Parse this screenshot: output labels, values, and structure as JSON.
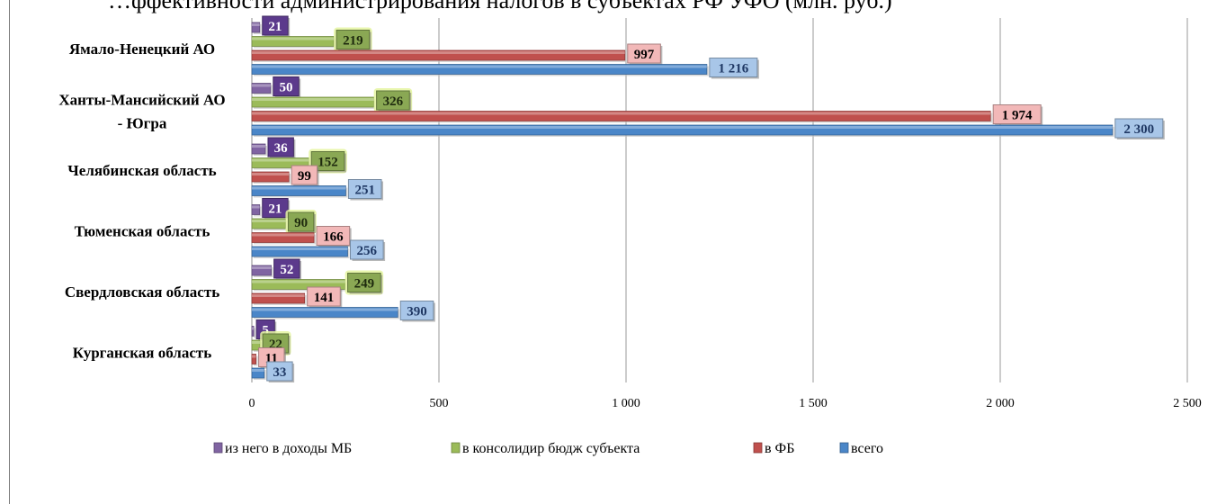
{
  "title": "…ффективности администрирования налогов в субъектах РФ УФО (млн. руб.)",
  "chart_data": {
    "type": "bar",
    "orientation": "horizontal",
    "categories": [
      "Курганская  область",
      "Свердловская область",
      "Тюменская область",
      "Челябинская область",
      "Ханты-Мансийский АО - Югра",
      "Ямало-Ненецкий  АО"
    ],
    "series": [
      {
        "name": "всего",
        "color": "#4a86c8",
        "values": [
          33,
          390,
          256,
          251,
          2300,
          1216
        ],
        "labels": [
          "33",
          "390",
          "256",
          "251",
          "2 300",
          "1 216"
        ]
      },
      {
        "name": "в ФБ",
        "color": "#c0504d",
        "values": [
          11,
          141,
          166,
          99,
          1974,
          997
        ],
        "labels": [
          "11",
          "141",
          "166",
          "99",
          "1 974",
          "997"
        ]
      },
      {
        "name": "в консолидир бюдж субъекта",
        "color": "#9bbb59",
        "values": [
          22,
          249,
          90,
          152,
          326,
          219
        ],
        "labels": [
          "22",
          "249",
          "90",
          "152",
          "326",
          "219"
        ]
      },
      {
        "name": "из него в доходы МБ",
        "color": "#8064a2",
        "values": [
          5,
          52,
          21,
          36,
          50,
          21
        ],
        "labels": [
          "5",
          "52",
          "21",
          "36",
          "50",
          "21"
        ]
      }
    ],
    "xlim": [
      0,
      2500
    ],
    "ticks": [
      0,
      500,
      1000,
      1500,
      2000,
      2500
    ],
    "tick_labels": [
      "0",
      "500",
      "1 000",
      "1 500",
      "2 000",
      "2 500"
    ],
    "grid": true,
    "legend_position": "bottom"
  },
  "legend": {
    "items": [
      {
        "label": "из него в доходы МБ",
        "color": "#8064a2"
      },
      {
        "label": "в консолидир бюдж субъекта",
        "color": "#9bbb59"
      },
      {
        "label": "в ФБ",
        "color": "#c0504d"
      },
      {
        "label": "всего",
        "color": "#4a86c8"
      }
    ]
  },
  "label_styles": {
    "всего": {
      "bg": "#a8c6e8",
      "fg": "#1f3864"
    },
    "в ФБ": {
      "bg": "#f2b8b8",
      "fg": "#000000"
    },
    "в консолидир бюдж субъекта": {
      "bg": "#8aa854",
      "fg": "#1e2a0e"
    },
    "из него в доходы МБ": {
      "bg": "#5c3a8c",
      "fg": "#ffffff"
    }
  }
}
